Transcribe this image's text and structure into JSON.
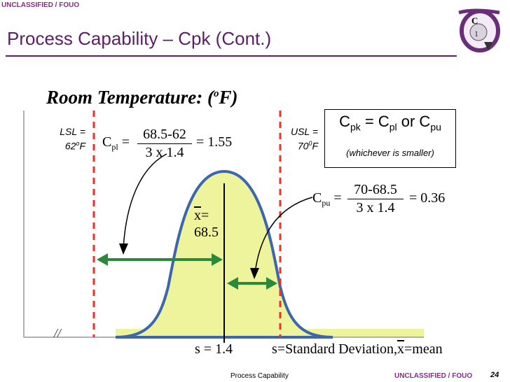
{
  "header": {
    "classification_top": "UNCLASSIFIED / FOUO",
    "title": "Process Capability – Cpk (Cont.)"
  },
  "diagram": {
    "heading": "Room Temperature: (",
    "heading_unit_sup": "o",
    "heading_end": "F)",
    "lsl": {
      "line1": "LSL =",
      "value": "62",
      "sup": "o",
      "unit": "F"
    },
    "usl": {
      "line1": "USL =",
      "value": "70",
      "sup": "0",
      "unit": "F"
    },
    "cpl": {
      "label": "C",
      "sub": "pl",
      "eq": "=",
      "numerator": "68.5-62",
      "denominator": "3 x 1.4",
      "result": "= 1.55"
    },
    "cpu": {
      "label": "C",
      "sub": "pu",
      "eq": "=",
      "numerator": "70-68.5",
      "denominator": "3 x 1.4",
      "result": "= 0.36"
    },
    "mean": {
      "xbar": "x",
      "eq": "=",
      "value": "68.5"
    },
    "sigma_label": "s = 1.4",
    "definitions": {
      "a": "s=Standard Deviation,",
      "xbar": "x",
      "b": "=mean"
    },
    "axis_break": "//",
    "colors": {
      "fill": "#edf49b",
      "curve": "#3c66ad",
      "spec_lines": "#e8332b",
      "arrows": "#2a8a3a",
      "mean_line": "#000000"
    }
  },
  "formula_box": {
    "c": "C",
    "sub_pk": "pk",
    "eq": " = C",
    "sub_pl": "pl",
    "or": " or C",
    "sub_pu": "pu",
    "note": "(whichever is smaller)"
  },
  "footer": {
    "center": "Process Capability",
    "classification": "UNCLASSIFIED / FOUO",
    "page_number": "24"
  },
  "logo": {
    "icon": "seal-emblem-icon"
  }
}
